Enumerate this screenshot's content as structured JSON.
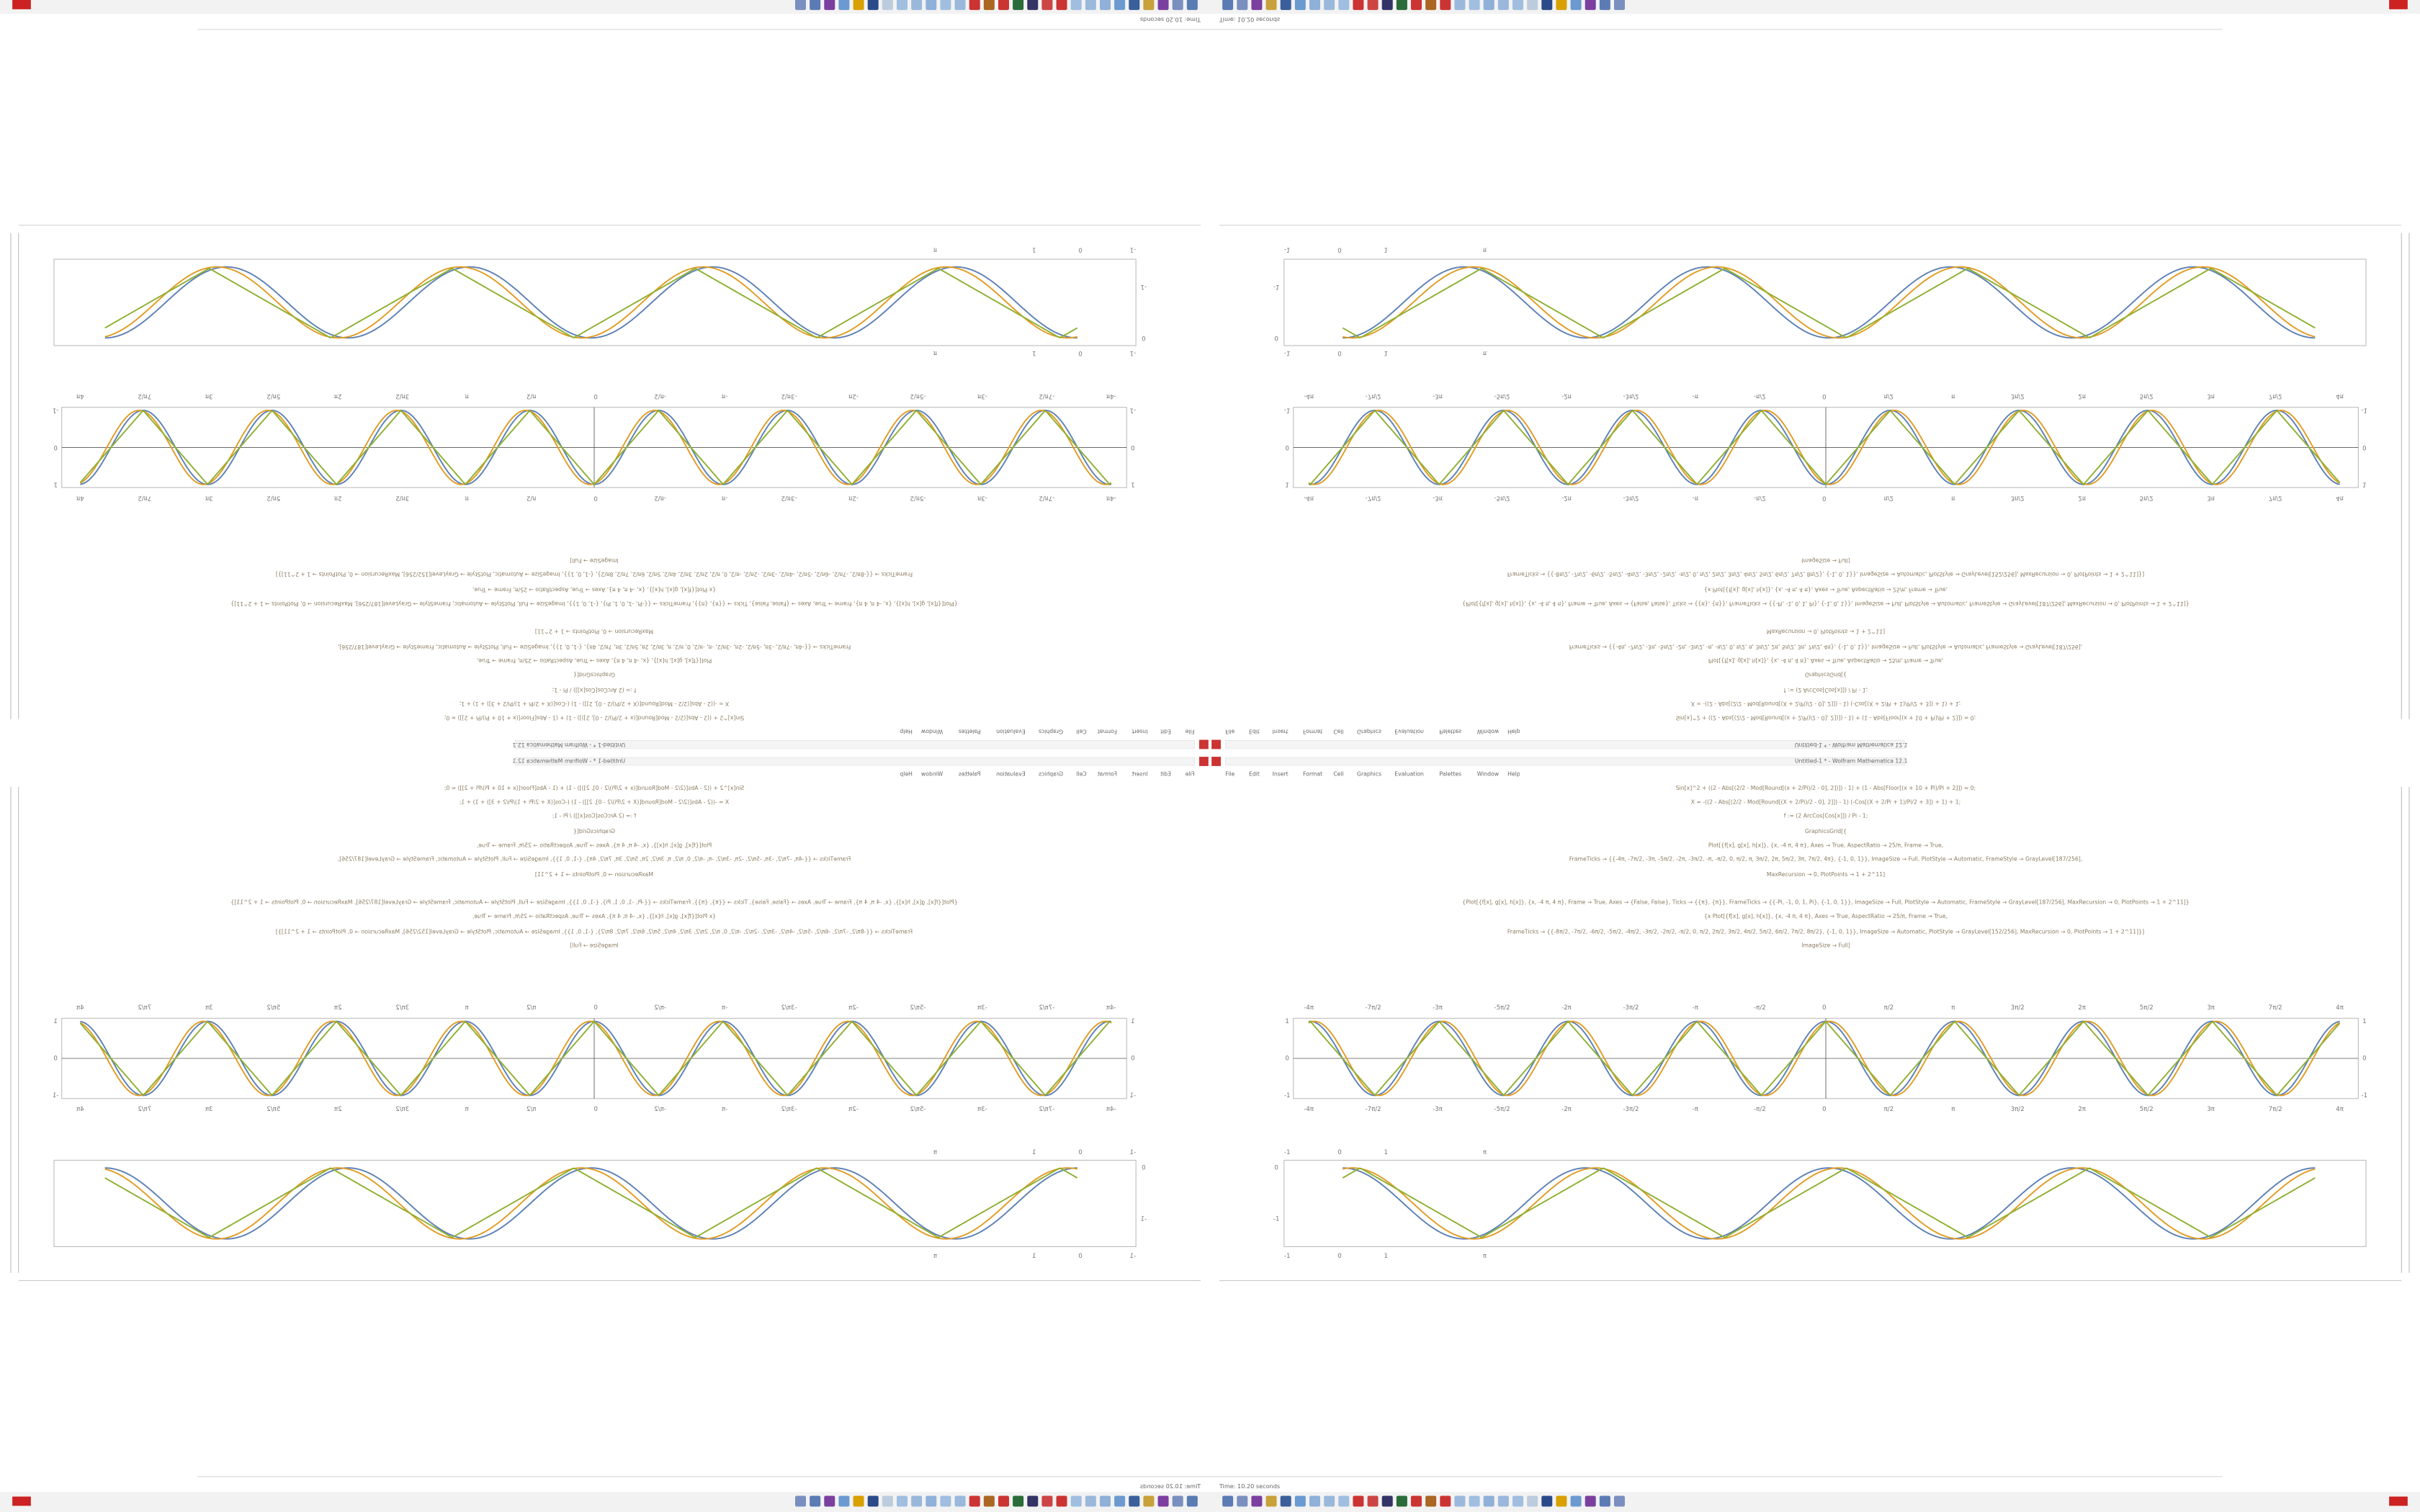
{
  "window": {
    "status": "Time: 10.20 seconds",
    "app_title": "Untitled-1 * - Wolfram Mathematica 12.1"
  },
  "menu": [
    "File",
    "Edit",
    "Insert",
    "Format",
    "Cell",
    "Graphics",
    "Evaluation",
    "Palettes",
    "Window",
    "Help"
  ],
  "code_lines": [
    "Sin[x]^2 + ((2 - Abs[(2/2 - Mod[Round[(x + 2/Pi)/2 - 0], 2])]) - 1) + (1 - Abs[Floor[(x + 10 + Pi)/Pi + 2]]) ≈ 0;",
    "X = -((2 - Abs[(2/2 - Mod[Round[(X + 2/Pi)/2 - 0], 2]]) - 1) (-Cos[(X + 2/Pi + 1)/Pi/2 + 3]) + 1) + 1;",
    "f := (2 ArcCos[Cos[x]]) / Pi - 1;",
    "GraphicsGrid[{",
    "Plot[{f[x], g[x], h[x]}, {x, -4 π, 4 π}, Axes → True, AspectRatio → 25/π, Frame → True,",
    "FrameTicks → {{-4π, -7π/2, -3π, -5π/2, -2π, -3π/2, -π, -π/2, 0, π/2, π, 3π/2, 2π, 5π/2, 3π, 7π/2, 4π}, {-1, 0, 1}}, ImageSize → Full, PlotStyle → Automatic, FrameStyle → GrayLevel[187/256],",
    "MaxRecursion → 0, PlotPoints → 1 + 2^11]",
    "{Plot[{f[x], g[x], h[x]}, {x, -4 π, 4 π}, Frame → True, Axes → {False, False}, Ticks → {{π}, {π}}, FrameTicks → {{-Pi, -1, 0, 1, Pi}, {-1, 0, 1}}, ImageSize → Full, PlotStyle → Automatic, FrameStyle → GrayLevel[187/256], MaxRecursion → 0, PlotPoints → 1 + 2^11]}",
    "{x Plot[{f[x], g[x], h[x]}, {x, -4 π, 4 π}, Axes → True, AspectRatio → 25/π, Frame → True,",
    "FrameTicks → {{-8π/2, -7π/2, -6π/2, -5π/2, -4π/2, -3π/2, -2π/2, -π/2, 0, π/2, 2π/2, 3π/2, 4π/2, 5π/2, 6π/2, 7π/2, 8π/2}, {-1, 0, 1}}, ImageSize → Automatic, PlotStyle → GrayLevel[152/256], MaxRecursion → 0, PlotPoints → 1 + 2^11]}]",
    "ImageSize → Full]"
  ],
  "plot1": {
    "ticks": [
      "-4π",
      "-7π/2",
      "-3π",
      "-5π/2",
      "-2π",
      "-3π/2",
      "-π",
      "-π/2",
      "0",
      "π/2",
      "π",
      "3π/2",
      "2π",
      "5π/2",
      "3π",
      "7π/2",
      "4π"
    ],
    "yticks": [
      "1",
      "0",
      "-1"
    ]
  },
  "plot2": {
    "ticks": [
      "-1",
      "0",
      "1",
      "π"
    ],
    "yticks": [
      "0",
      "-1"
    ]
  }
}
